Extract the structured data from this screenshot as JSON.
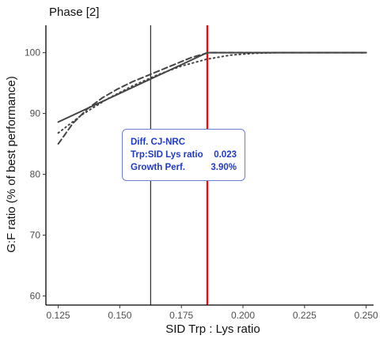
{
  "title": "Phase [2]",
  "chart_data": {
    "type": "line",
    "xlabel": "SID Trp : Lys ratio",
    "ylabel": "G:F ratio (% of best performance)",
    "xlim": [
      0.12,
      0.253
    ],
    "ylim": [
      58.5,
      104.5
    ],
    "xticks": [
      0.125,
      0.15,
      0.175,
      0.2,
      0.225,
      0.25
    ],
    "xtick_labels": [
      "0.125",
      "0.150",
      "0.175",
      "0.200",
      "0.225",
      "0.250"
    ],
    "yticks": [
      60,
      70,
      80,
      90,
      100
    ],
    "ytick_labels": [
      "60",
      "70",
      "80",
      "90",
      "100"
    ],
    "grid": false,
    "series": [
      {
        "style": "solid",
        "x": [
          0.125,
          0.1855,
          0.25
        ],
        "y": [
          88.6,
          100,
          100
        ]
      },
      {
        "style": "dashed",
        "x": [
          0.125,
          0.131,
          0.137,
          0.143,
          0.149,
          0.155,
          0.161,
          0.167,
          0.173,
          0.179,
          0.186,
          0.25
        ],
        "y": [
          85.0,
          88.4,
          90.8,
          92.6,
          94.0,
          95.2,
          96.2,
          97.2,
          98.2,
          99.2,
          100,
          100
        ]
      },
      {
        "style": "dotted",
        "x": [
          0.125,
          0.135,
          0.145,
          0.155,
          0.165,
          0.175,
          0.185,
          0.195,
          0.205,
          0.215,
          0.225,
          0.25
        ],
        "y": [
          86.8,
          89.9,
          92.4,
          94.5,
          96.3,
          97.8,
          98.9,
          99.6,
          99.9,
          100,
          100,
          100
        ]
      }
    ],
    "vlines": [
      {
        "x": 0.1625,
        "color": "#000000"
      },
      {
        "x": 0.1855,
        "color": "#ff0000"
      }
    ],
    "annotation": {
      "heading": "Diff. CJ-NRC",
      "rows": [
        {
          "label": "Trp:SID Lys ratio",
          "value": "0.023"
        },
        {
          "label": "Growth Perf.",
          "value": "3.90%"
        }
      ],
      "text_color": "#1f3bc4",
      "border_color": "#6b7fd7"
    }
  }
}
